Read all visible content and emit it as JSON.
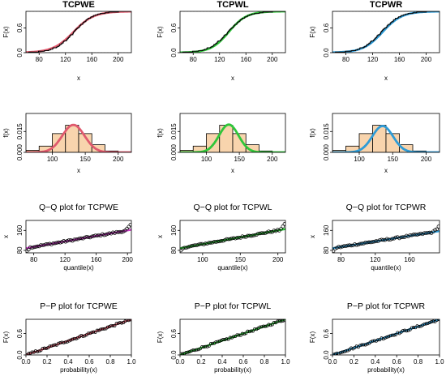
{
  "chart_data": {
    "type": "grid",
    "layout": {
      "rows": 4,
      "cols": 3
    },
    "colors": {
      "TCPWE": "#e05a6e",
      "TCPWL": "#2fc63a",
      "TCPWR": "#2e9bd6",
      "hist_fill": "#f8d4ad",
      "qq_line": "#cc3cc8",
      "data": "#000000"
    },
    "rows": [
      {
        "kind": "cdf",
        "ylabel": "F(x)",
        "xlabel": "x",
        "xlim": [
          60,
          220
        ],
        "ylim": [
          0,
          1
        ],
        "xticks": [
          "80",
          "120",
          "160",
          "200"
        ],
        "yticks": [
          "0.0",
          "0.6"
        ],
        "panels": [
          {
            "model": "TCPWE",
            "title": "TCPWE",
            "fit_mu": 132,
            "fit_s": 15.5
          },
          {
            "model": "TCPWL",
            "title": "TCPWL",
            "fit_mu": 134,
            "fit_s": 13.5
          },
          {
            "model": "TCPWR",
            "title": "TCPWR",
            "fit_mu": 135,
            "fit_s": 14.5
          }
        ]
      },
      {
        "kind": "pdf",
        "ylabel": "f(x)",
        "xlabel": "x",
        "xlim": [
          60,
          220
        ],
        "ylim": [
          0,
          0.028
        ],
        "xticks": [
          "100",
          "150",
          "200"
        ],
        "yticks": [
          "0.000",
          "0.015"
        ],
        "hist": {
          "bins": [
            [
              60,
              80
            ],
            [
              80,
              100
            ],
            [
              100,
              120
            ],
            [
              120,
              140
            ],
            [
              140,
              160
            ],
            [
              160,
              180
            ],
            [
              180,
              200
            ]
          ],
          "density": [
            0.0015,
            0.0045,
            0.0135,
            0.0195,
            0.0135,
            0.0055,
            0.001
          ]
        },
        "panels": [
          {
            "model": "TCPWE",
            "title": "",
            "fit_mu": 132,
            "fit_s": 25,
            "fit_peak": 0.0198
          },
          {
            "model": "TCPWL",
            "title": "",
            "fit_mu": 134,
            "fit_s": 22,
            "fit_peak": 0.02
          },
          {
            "model": "TCPWR",
            "title": "",
            "fit_mu": 135,
            "fit_s": 23,
            "fit_peak": 0.019
          }
        ]
      },
      {
        "kind": "qq",
        "ylabel": "x",
        "xlabel": "quantile(x)",
        "yticks": [
          "80",
          "160"
        ],
        "panels": [
          {
            "model": "TCPWE",
            "title": "Q−Q plot for  TCPWE",
            "xlim": [
              70,
              205
            ],
            "xticks": [
              "80",
              "120",
              "160",
              "200"
            ],
            "line_color": "#cc3cc8"
          },
          {
            "model": "TCPWL",
            "title": "Q−Q plot for  TCPWL",
            "xlim": [
              70,
              210
            ],
            "xticks": [
              "100",
              "150",
              "200"
            ],
            "line_color": "#2fc63a"
          },
          {
            "model": "TCPWR",
            "title": "Q−Q plot for  TCPWR",
            "xlim": [
              70,
              195
            ],
            "xticks": [
              "80",
              "120",
              "160"
            ],
            "line_color": "#2e9bd6"
          }
        ]
      },
      {
        "kind": "pp",
        "ylabel": "F(x)",
        "xlabel": "probability(x)",
        "xlim": [
          0,
          1
        ],
        "ylim": [
          0,
          1
        ],
        "xticks": [
          "0.0",
          "0.2",
          "0.4",
          "0.6",
          "0.8",
          "1.0"
        ],
        "yticks": [
          "0.0",
          "0.6"
        ],
        "panels": [
          {
            "model": "TCPWE",
            "title": "P−P plot for  TCPWE"
          },
          {
            "model": "TCPWL",
            "title": "P−P plot for  TCPWL"
          },
          {
            "model": "TCPWR",
            "title": "P−P plot for  TCPWR"
          }
        ]
      }
    ]
  }
}
